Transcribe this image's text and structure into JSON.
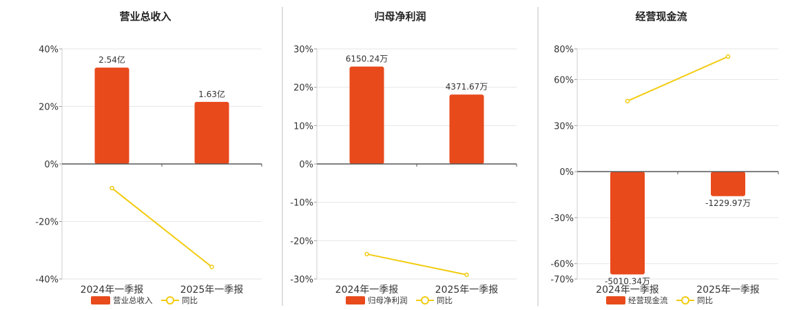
{
  "chart_data": [
    {
      "type": "bar",
      "title": "营业总收入",
      "categories": [
        "2024年一季报",
        "2025年一季报"
      ],
      "series": [
        {
          "name": "营业总收入",
          "kind": "bar",
          "values": [
            33.5,
            21.6
          ],
          "labels": [
            "2.54亿",
            "1.63亿"
          ]
        },
        {
          "name": "同比",
          "kind": "line",
          "values": [
            -8.4,
            -35.8
          ]
        }
      ],
      "ylim": [
        -40,
        40
      ],
      "yticks": [
        -40,
        -20,
        0,
        20,
        40
      ],
      "ytick_labels": [
        "-40%",
        "-20%",
        "0%",
        "20%",
        "40%"
      ],
      "grid": true,
      "legend": "bottom"
    },
    {
      "type": "bar",
      "title": "归母净利润",
      "categories": [
        "2024年一季报",
        "2025年一季报"
      ],
      "series": [
        {
          "name": "归母净利润",
          "kind": "bar",
          "values": [
            25.4,
            18.1
          ],
          "labels": [
            "6150.24万",
            "4371.67万"
          ]
        },
        {
          "name": "同比",
          "kind": "line",
          "values": [
            -23.5,
            -28.9
          ]
        }
      ],
      "ylim": [
        -30,
        30
      ],
      "yticks": [
        -30,
        -20,
        -10,
        0,
        10,
        20,
        30
      ],
      "ytick_labels": [
        "-30%",
        "-20%",
        "-10%",
        "0%",
        "10%",
        "20%",
        "30%"
      ],
      "grid": true,
      "legend": "bottom"
    },
    {
      "type": "bar",
      "title": "经营现金流",
      "categories": [
        "2024年一季报",
        "2025年一季报"
      ],
      "series": [
        {
          "name": "经营现金流",
          "kind": "bar",
          "values": [
            -67.0,
            -16.0
          ],
          "labels": [
            "-5010.34万",
            "-1229.97万"
          ]
        },
        {
          "name": "同比",
          "kind": "line",
          "values": [
            46.0,
            75.0
          ]
        }
      ],
      "ylim": [
        -70,
        80
      ],
      "yticks": [
        -70,
        -60,
        -30,
        0,
        30,
        60,
        80
      ],
      "ytick_labels": [
        "-70%",
        "-60%",
        "-30%",
        "0%",
        "30%",
        "60%",
        "80%"
      ],
      "grid": true,
      "legend": "bottom"
    }
  ],
  "colors": {
    "bar": "#e84a1c",
    "line": "#f2cb0f",
    "axis": "#555555",
    "grid": "#e6e6e6",
    "text": "#333333"
  }
}
